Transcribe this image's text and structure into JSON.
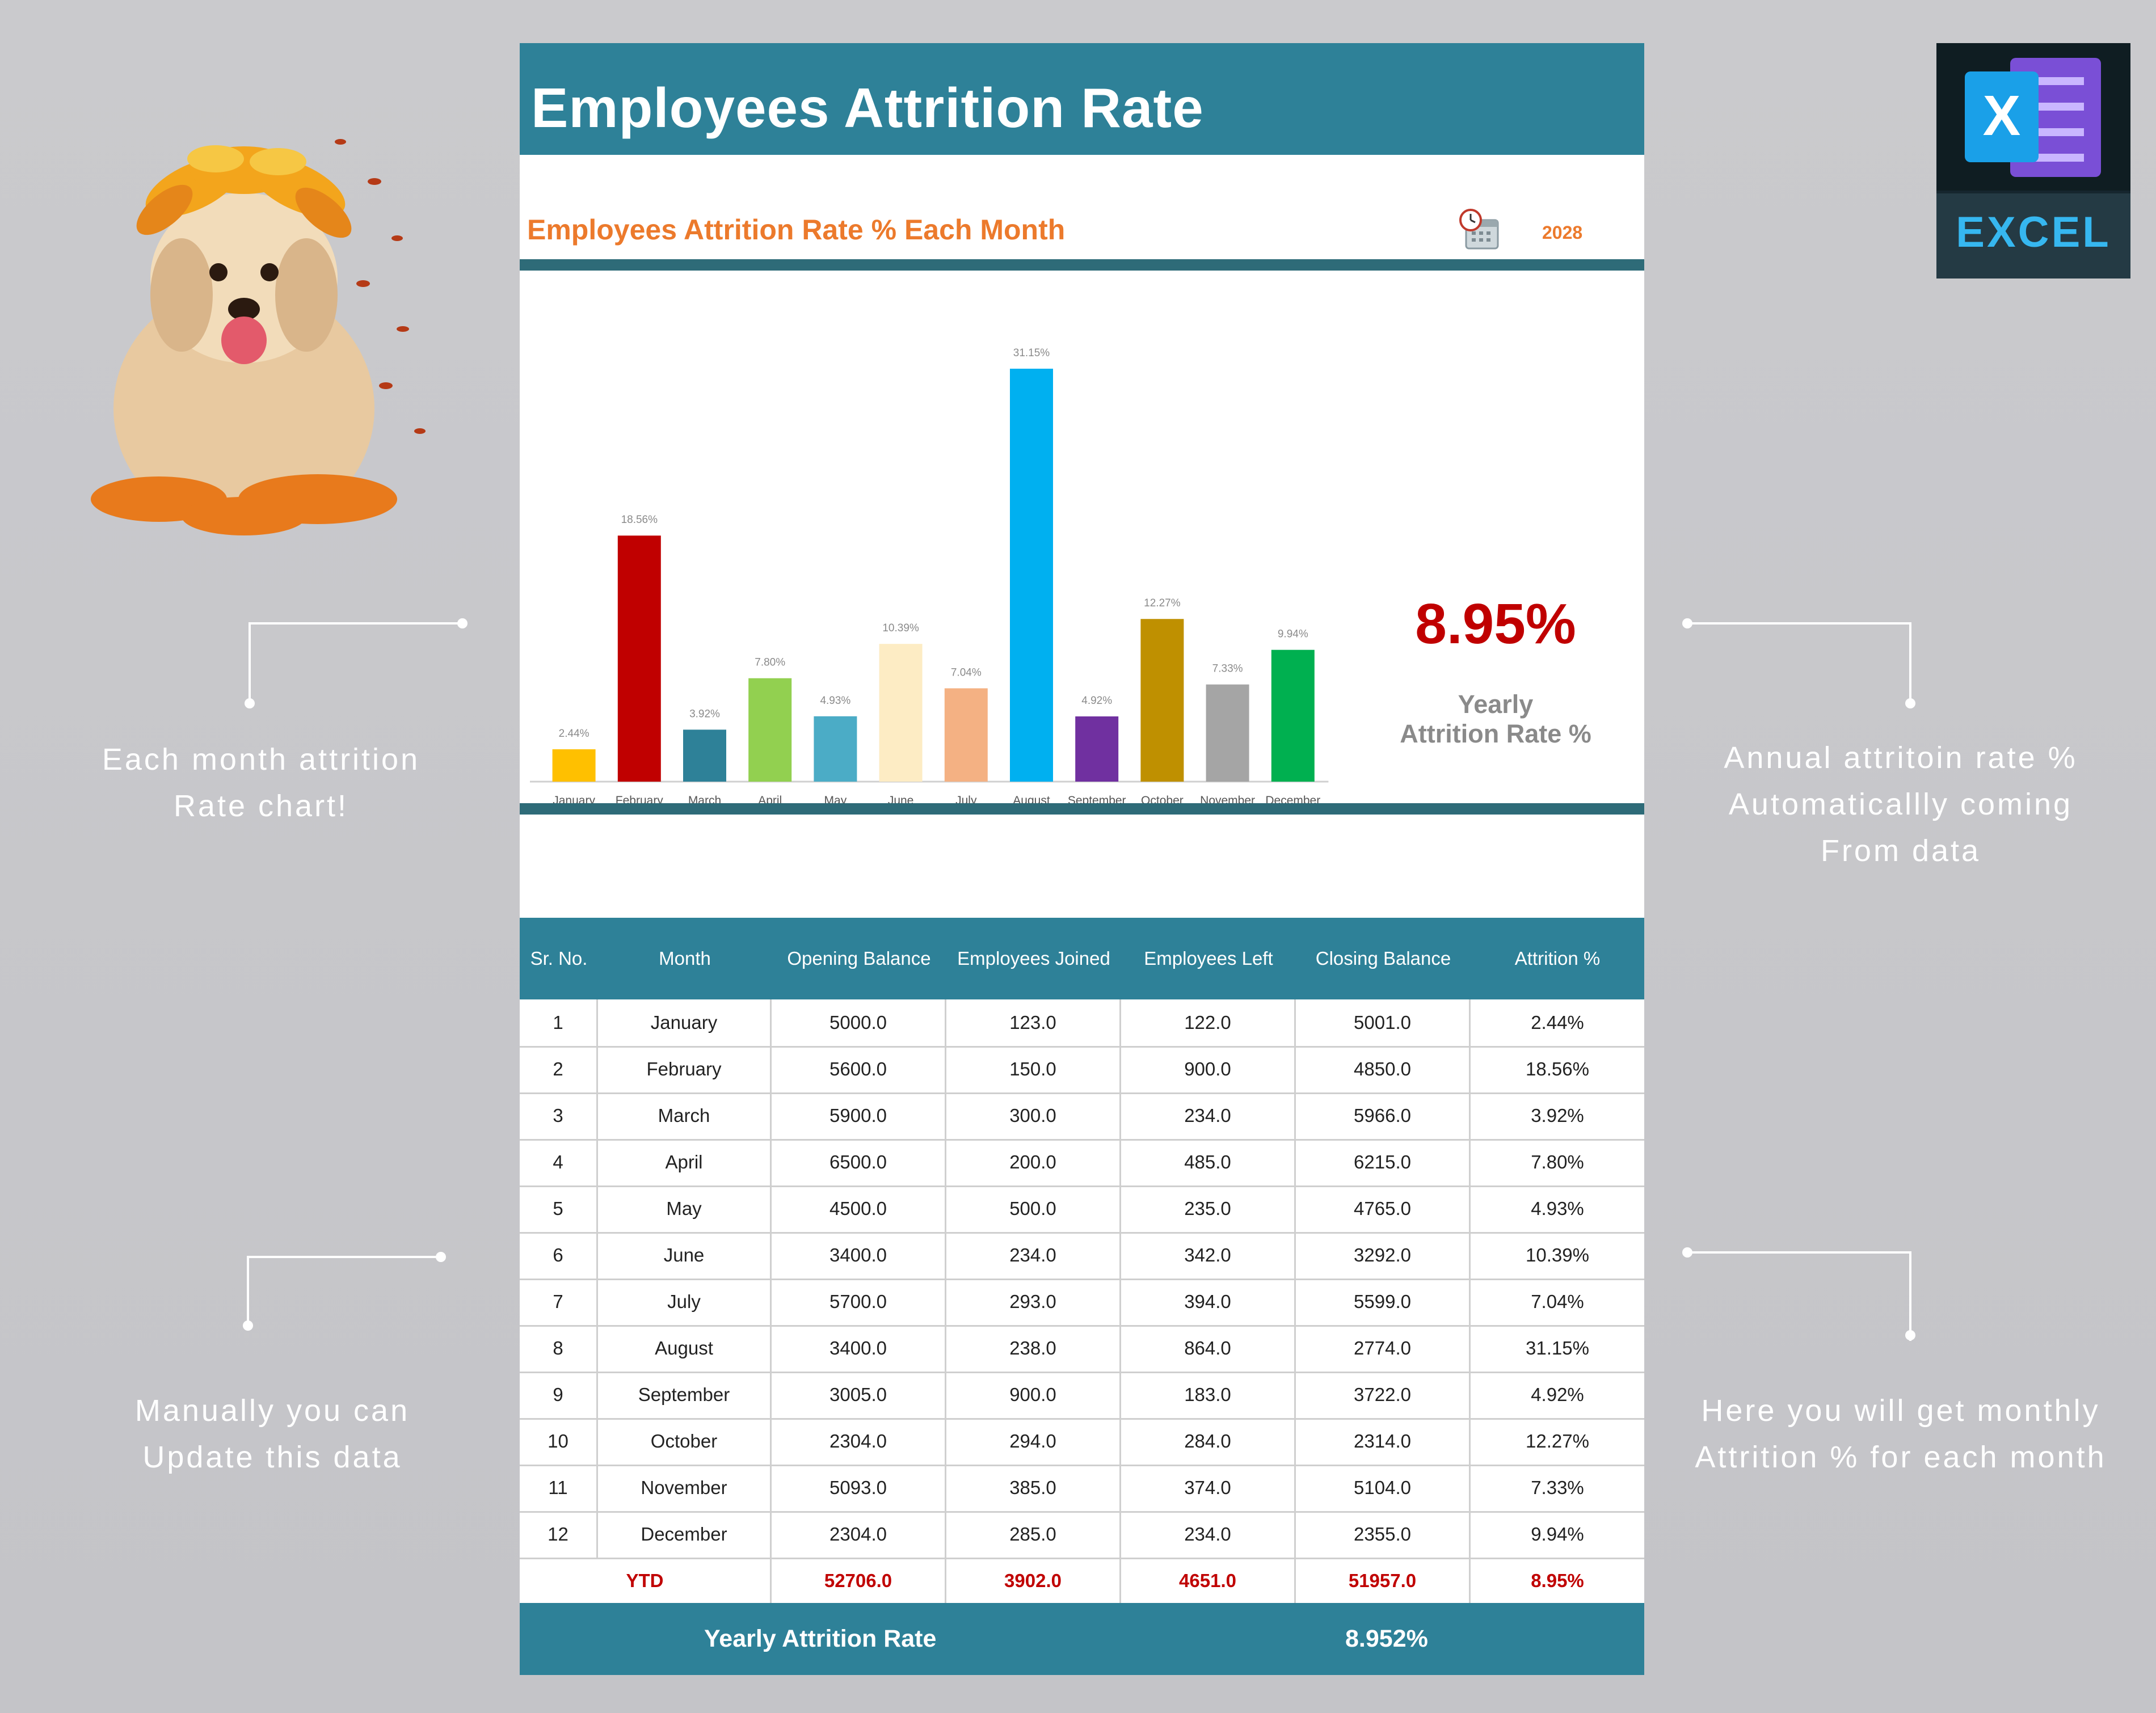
{
  "title": "Employees Attrition Rate",
  "chart_section": {
    "subtitle": "Employees Attrition Rate % Each Month",
    "year": "2028",
    "yearly_rate": "8.95%",
    "yearly_label_line1": "Yearly",
    "yearly_label_line2": "Attrition Rate %"
  },
  "chart_data": {
    "type": "bar",
    "categories": [
      "January",
      "February",
      "March",
      "April",
      "May",
      "June",
      "July",
      "August",
      "September",
      "October",
      "November",
      "December"
    ],
    "values": [
      2.44,
      18.56,
      3.92,
      7.8,
      4.93,
      10.39,
      7.04,
      31.15,
      4.92,
      12.27,
      7.33,
      9.94
    ],
    "data_labels": [
      "2.44%",
      "18.56%",
      "3.92%",
      "7.80%",
      "4.93%",
      "10.39%",
      "7.04%",
      "31.15%",
      "4.92%",
      "12.27%",
      "7.33%",
      "9.94%"
    ],
    "colors": [
      "#ffc000",
      "#c00000",
      "#2e8198",
      "#92d050",
      "#4bacc6",
      "#fdecc4",
      "#f4b183",
      "#00b0f0",
      "#7030a0",
      "#bf9000",
      "#a5a5a5",
      "#00b050"
    ],
    "ylim": [
      0,
      31.15
    ],
    "grid": false,
    "legend": "none"
  },
  "table": {
    "headers": [
      "Sr. No.",
      "Month",
      "Opening Balance",
      "Employees Joined",
      "Employees Left",
      "Closing Balance",
      "Attrition %"
    ],
    "rows": [
      [
        "1",
        "January",
        "5000.0",
        "123.0",
        "122.0",
        "5001.0",
        "2.44%"
      ],
      [
        "2",
        "February",
        "5600.0",
        "150.0",
        "900.0",
        "4850.0",
        "18.56%"
      ],
      [
        "3",
        "March",
        "5900.0",
        "300.0",
        "234.0",
        "5966.0",
        "3.92%"
      ],
      [
        "4",
        "April",
        "6500.0",
        "200.0",
        "485.0",
        "6215.0",
        "7.80%"
      ],
      [
        "5",
        "May",
        "4500.0",
        "500.0",
        "235.0",
        "4765.0",
        "4.93%"
      ],
      [
        "6",
        "June",
        "3400.0",
        "234.0",
        "342.0",
        "3292.0",
        "10.39%"
      ],
      [
        "7",
        "July",
        "5700.0",
        "293.0",
        "394.0",
        "5599.0",
        "7.04%"
      ],
      [
        "8",
        "August",
        "3400.0",
        "238.0",
        "864.0",
        "2774.0",
        "31.15%"
      ],
      [
        "9",
        "September",
        "3005.0",
        "900.0",
        "183.0",
        "3722.0",
        "4.92%"
      ],
      [
        "10",
        "October",
        "2304.0",
        "294.0",
        "284.0",
        "2314.0",
        "12.27%"
      ],
      [
        "11",
        "November",
        "5093.0",
        "385.0",
        "374.0",
        "5104.0",
        "7.33%"
      ],
      [
        "12",
        "December",
        "2304.0",
        "285.0",
        "234.0",
        "2355.0",
        "9.94%"
      ]
    ],
    "ytd": [
      "YTD",
      "52706.0",
      "3902.0",
      "4651.0",
      "51957.0",
      "8.95%"
    ]
  },
  "footer": {
    "label": "Yearly Attrition Rate",
    "value": "8.952%"
  },
  "notes": {
    "left_top": [
      "Each month attrition",
      "Rate chart!"
    ],
    "left_bottom": [
      "Manually you can",
      "Update this data"
    ],
    "right_top": [
      "Annual attritoin rate %",
      "Automaticallly coming",
      "From data"
    ],
    "right_bottom": [
      "Here you will get monthly",
      "Attrition % for each month"
    ]
  },
  "badge": {
    "letter": "X",
    "label": "EXCEL"
  },
  "colors": {
    "teal": "#2e8198",
    "orange": "#ec7a2c",
    "red": "#c00000"
  }
}
